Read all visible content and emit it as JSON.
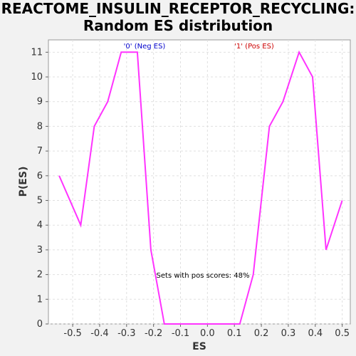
{
  "chart_data": {
    "type": "line",
    "title_line1": "REACTOME_INSULIN_RECEPTOR_RECYCLING:",
    "title_line2": "Random ES distribution",
    "xlabel": "ES",
    "ylabel": "P(ES)",
    "xlim": [
      -0.59,
      0.53
    ],
    "ylim": [
      0,
      11.5
    ],
    "xticks": [
      -0.5,
      -0.4,
      -0.3,
      -0.2,
      -0.1,
      0.0,
      0.1,
      0.2,
      0.3,
      0.4,
      0.5
    ],
    "yticks": [
      0,
      1,
      2,
      3,
      4,
      5,
      6,
      7,
      8,
      9,
      10,
      11
    ],
    "grid": true,
    "line_color": "#ff33ff",
    "series": [
      {
        "x": [
          -0.55,
          -0.47,
          -0.42,
          -0.37,
          -0.32,
          -0.27,
          -0.26,
          -0.21,
          -0.16,
          -0.11,
          0.02,
          0.07,
          0.12,
          0.17,
          0.23,
          0.28,
          0.34,
          0.39,
          0.44,
          0.5
        ],
        "y": [
          6,
          4,
          8,
          9,
          11,
          11,
          11,
          3,
          0,
          0,
          0,
          0,
          0,
          2,
          8,
          9,
          11,
          10,
          3,
          5
        ]
      }
    ],
    "annotations": {
      "neg_label": "'0' (Neg ES)",
      "pos_label": "'1' (Pos ES)",
      "neg_color": "#0000cc",
      "pos_color": "#cc0000",
      "note": "Sets with pos scores: 48%"
    }
  }
}
